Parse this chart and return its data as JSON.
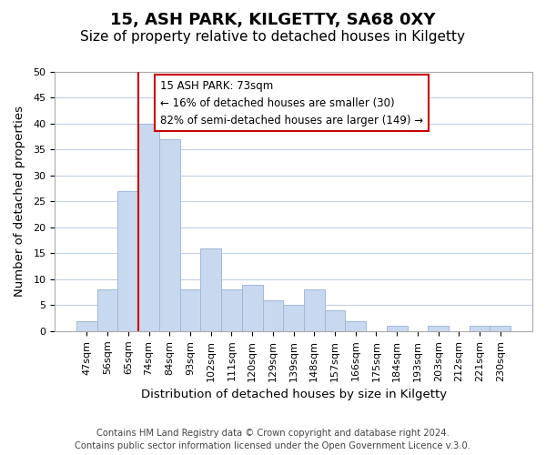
{
  "title": "15, ASH PARK, KILGETTY, SA68 0XY",
  "subtitle": "Size of property relative to detached houses in Kilgetty",
  "xlabel": "Distribution of detached houses by size in Kilgetty",
  "ylabel": "Number of detached properties",
  "footer_line1": "Contains HM Land Registry data © Crown copyright and database right 2024.",
  "footer_line2": "Contains public sector information licensed under the Open Government Licence v.3.0.",
  "bin_labels": [
    "47sqm",
    "56sqm",
    "65sqm",
    "74sqm",
    "84sqm",
    "93sqm",
    "102sqm",
    "111sqm",
    "120sqm",
    "129sqm",
    "139sqm",
    "148sqm",
    "157sqm",
    "166sqm",
    "175sqm",
    "184sqm",
    "193sqm",
    "203sqm",
    "212sqm",
    "221sqm",
    "230sqm"
  ],
  "bar_heights": [
    2,
    8,
    27,
    40,
    37,
    8,
    16,
    8,
    9,
    6,
    5,
    8,
    4,
    2,
    0,
    1,
    0,
    1,
    0,
    1,
    1
  ],
  "bar_color": "#c8d9ef",
  "bar_edge_color": "#a0b8d8",
  "vline_position": 2.5,
  "vline_color": "#cc0000",
  "annotation_title": "15 ASH PARK: 73sqm",
  "annotation_line1": "← 16% of detached houses are smaller (30)",
  "annotation_line2": "82% of semi-detached houses are larger (149) →",
  "annotation_box_color": "#ffffff",
  "annotation_box_edge": "#cc0000",
  "ylim": [
    0,
    50
  ],
  "yticks": [
    0,
    5,
    10,
    15,
    20,
    25,
    30,
    35,
    40,
    45,
    50
  ],
  "background_color": "#ffffff",
  "grid_color": "#c0d0e8",
  "title_fontsize": 13,
  "subtitle_fontsize": 11,
  "axis_label_fontsize": 9.5,
  "tick_fontsize": 8,
  "footer_fontsize": 7.2,
  "annotation_fontsize": 8.5
}
